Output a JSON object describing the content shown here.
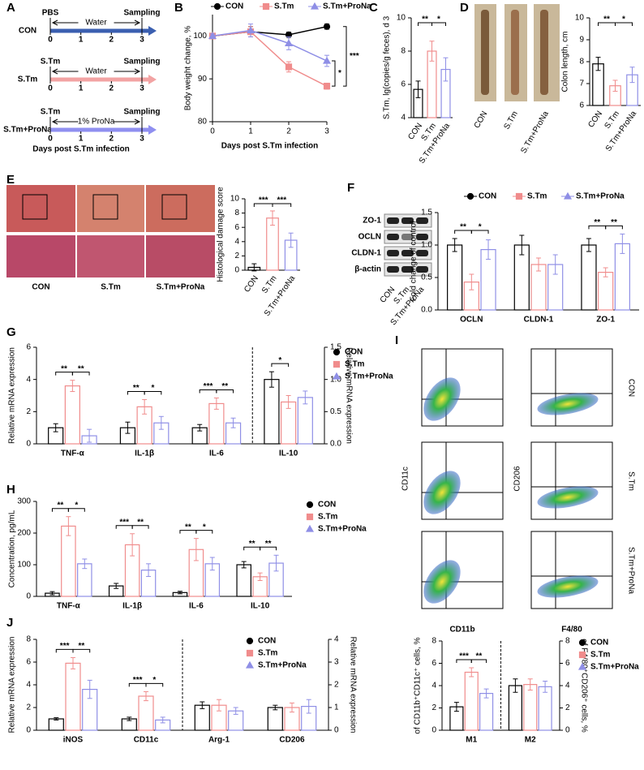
{
  "figure": {
    "timeline": {
      "panel_label": "A",
      "rows": [
        {
          "group": "CON",
          "start": "PBS",
          "end": "Sampling",
          "treatment": "Water",
          "color": "#3b5fb0"
        },
        {
          "group": "S.Tm",
          "start": "S.Tm",
          "end": "Sampling",
          "treatment": "Water",
          "color": "#f2a3a3"
        },
        {
          "group": "S.Tm+ProNa",
          "start": "S.Tm",
          "end": "Sampling",
          "treatment": "1% ProNa",
          "color": "#8f8ff0"
        }
      ],
      "ticks": [
        "0",
        "1",
        "2",
        "3"
      ],
      "xlabel": "Days post S.Tm infection"
    },
    "photos": {
      "labels": [
        "CON",
        "S.Tm",
        "S.Tm+ProNa"
      ]
    },
    "histology": {
      "panel_label": "E",
      "labels": [
        "CON",
        "S.Tm",
        "S.Tm+ProNa"
      ]
    },
    "blot": {
      "proteins": [
        "ZO-1",
        "OCLN",
        "CLDN-1",
        "β-actin"
      ],
      "lanes": [
        "CON",
        "S.Tm",
        "S.Tm+ProNa"
      ]
    },
    "flow": {
      "panel_label": "I",
      "rows": [
        "CON",
        "S.Tm",
        "S.Tm+ProNa"
      ],
      "left_x": "CD11b",
      "left_y": "CD11c",
      "right_x": "F4/80",
      "right_y": "CD206"
    }
  },
  "chart_data": [
    {
      "type": "line",
      "panel_label": "B",
      "ylabel": "Body weight change, %",
      "xlabel": "Days post S.Tm infection",
      "x": [
        0,
        1,
        2,
        3
      ],
      "xlim": [
        0,
        3
      ],
      "xticks": [
        0,
        1,
        2,
        3
      ],
      "ylim": [
        80,
        105
      ],
      "yticks": [
        80,
        90,
        100
      ],
      "series": [
        {
          "name": "CON",
          "color": "#000000",
          "values": [
            100,
            101,
            100.3,
            102.2
          ],
          "errors": [
            0.5,
            1.2,
            0.6,
            0.6
          ]
        },
        {
          "name": "S.Tm",
          "color": "#f08c8c",
          "values": [
            100,
            101,
            92.8,
            88.3
          ],
          "errors": [
            0.5,
            1.2,
            1.2,
            0.7
          ]
        },
        {
          "name": "S.Tm+ProNa",
          "color": "#8f8fe6",
          "values": [
            100,
            101.3,
            98.3,
            94.2
          ],
          "errors": [
            0.5,
            1.5,
            1.5,
            1.3
          ]
        }
      ],
      "annotations": [
        {
          "text": "*",
          "from": 1,
          "to": 2
        },
        {
          "text": "***",
          "from": 0,
          "to": 1
        }
      ]
    },
    {
      "type": "bar",
      "panel_label": "C",
      "ylabel": "S.Tm, lg(copies/g feces), d 3",
      "categories": [
        "CON",
        "S.Tm",
        "S.Tm+ProNa"
      ],
      "values": [
        5.7,
        8.0,
        6.9
      ],
      "errors": [
        0.5,
        0.6,
        0.7
      ],
      "colors": [
        "#000000",
        "#f08c8c",
        "#8f8fe6"
      ],
      "ylim": [
        4,
        10
      ],
      "yticks": [
        4,
        6,
        8,
        10
      ],
      "annotations": [
        {
          "text": "**",
          "from": 0,
          "to": 1
        },
        {
          "text": "*",
          "from": 1,
          "to": 2
        }
      ]
    },
    {
      "type": "bar",
      "panel_label": "D",
      "ylabel": "Colon length, cm",
      "categories": [
        "CON",
        "S.Tm",
        "S.Tm+ProNa"
      ],
      "values": [
        7.9,
        6.9,
        7.4
      ],
      "errors": [
        0.3,
        0.25,
        0.35
      ],
      "colors": [
        "#000000",
        "#f08c8c",
        "#8f8fe6"
      ],
      "ylim": [
        6,
        10
      ],
      "yticks": [
        6,
        7,
        8,
        9,
        10
      ],
      "annotations": [
        {
          "text": "**",
          "from": 0,
          "to": 1
        },
        {
          "text": "*",
          "from": 1,
          "to": 2
        }
      ]
    },
    {
      "type": "bar",
      "ylabel": "Histological damage score",
      "categories": [
        "CON",
        "S.Tm",
        "S.Tm+ProNa"
      ],
      "values": [
        0.4,
        7.3,
        4.2
      ],
      "errors": [
        0.5,
        1.0,
        1.0
      ],
      "colors": [
        "#000000",
        "#f08c8c",
        "#8f8fe6"
      ],
      "ylim": [
        0,
        10
      ],
      "yticks": [
        0,
        2,
        4,
        6,
        8,
        10
      ],
      "annotations": [
        {
          "text": "***",
          "from": 0,
          "to": 1
        },
        {
          "text": "***",
          "from": 1,
          "to": 2
        }
      ]
    },
    {
      "type": "grouped",
      "panel_label": "F",
      "ylabel": "Fold change of control",
      "categories": [
        "OCLN",
        "CLDN-1",
        "ZO-1"
      ],
      "ylim": [
        0,
        1.5
      ],
      "yticks": [
        {
          "value": 0,
          "label": "0.0"
        },
        0.5,
        {
          "value": 1,
          "label": "1.0"
        },
        1.5
      ],
      "series": [
        {
          "name": "CON",
          "color": "#000000",
          "values": [
            1.0,
            1.0,
            1.0
          ],
          "errors": [
            0.1,
            0.15,
            0.1
          ]
        },
        {
          "name": "S.Tm",
          "color": "#f08c8c",
          "values": [
            0.43,
            0.7,
            0.58
          ],
          "errors": [
            0.12,
            0.1,
            0.07
          ]
        },
        {
          "name": "S.Tm+ProNa",
          "color": "#8f8fe6",
          "values": [
            0.93,
            0.7,
            1.02
          ],
          "errors": [
            0.15,
            0.15,
            0.15
          ]
        }
      ],
      "annotations": [
        {
          "text": "**",
          "category": 0,
          "from": 0,
          "to": 1
        },
        {
          "text": "*",
          "category": 0,
          "from": 1,
          "to": 2
        },
        {
          "text": "**",
          "category": 2,
          "from": 0,
          "to": 1
        },
        {
          "text": "**",
          "category": 2,
          "from": 1,
          "to": 2
        }
      ]
    },
    {
      "type": "grouped",
      "panel_label": "G",
      "ylabel": "Relative mRNA expression",
      "y2label": "Relative mRNA expression",
      "categories": [
        "TNF-α",
        "IL-1β",
        "IL-6"
      ],
      "y2_categories": [
        "IL-10"
      ],
      "ylim": [
        0,
        6
      ],
      "yticks": [
        0,
        2,
        4,
        6
      ],
      "y2lim": [
        0,
        1.5
      ],
      "y2ticks": [
        {
          "value": 0,
          "label": "0.0"
        },
        0.5,
        {
          "value": 1,
          "label": "1.0"
        },
        1.5
      ],
      "series": [
        {
          "name": "CON",
          "color": "#000000",
          "values": [
            1.0,
            1.0,
            1.0
          ],
          "errors": [
            0.25,
            0.35,
            0.2
          ],
          "y2_values": [
            1.0
          ],
          "y2_errors": [
            0.12
          ]
        },
        {
          "name": "S.Tm",
          "color": "#f08c8c",
          "values": [
            3.6,
            2.3,
            2.5
          ],
          "errors": [
            0.35,
            0.45,
            0.35
          ],
          "y2_values": [
            0.65
          ],
          "y2_errors": [
            0.1
          ]
        },
        {
          "name": "S.Tm+ProNa",
          "color": "#8f8fe6",
          "values": [
            0.5,
            1.3,
            1.3
          ],
          "errors": [
            0.4,
            0.4,
            0.3
          ],
          "y2_values": [
            0.72
          ],
          "y2_errors": [
            0.1
          ]
        }
      ],
      "annotations": [
        {
          "text": "**",
          "category": 0,
          "from": 0,
          "to": 1
        },
        {
          "text": "**",
          "category": 0,
          "from": 1,
          "to": 2
        },
        {
          "text": "**",
          "category": 1,
          "from": 0,
          "to": 1
        },
        {
          "text": "*",
          "category": 1,
          "from": 1,
          "to": 2
        },
        {
          "text": "***",
          "category": 2,
          "from": 0,
          "to": 1
        },
        {
          "text": "**",
          "category": 2,
          "from": 1,
          "to": 2
        },
        {
          "text": "*",
          "category": 3,
          "from": 0,
          "to": 1
        }
      ]
    },
    {
      "type": "grouped",
      "panel_label": "H",
      "ylabel": "Concentration, pg/mL",
      "categories": [
        "TNF-α",
        "IL-1β",
        "IL-6",
        "IL-10"
      ],
      "ylim": [
        0,
        300
      ],
      "yticks": [
        0,
        100,
        200,
        300
      ],
      "series": [
        {
          "name": "CON",
          "color": "#000000",
          "values": [
            10,
            33,
            12,
            100
          ],
          "errors": [
            5,
            8,
            4,
            10
          ]
        },
        {
          "name": "S.Tm",
          "color": "#f08c8c",
          "values": [
            222,
            163,
            148,
            62
          ],
          "errors": [
            30,
            35,
            35,
            12
          ]
        },
        {
          "name": "S.Tm+ProNa",
          "color": "#8f8fe6",
          "values": [
            103,
            83,
            103,
            105
          ],
          "errors": [
            15,
            20,
            20,
            25
          ]
        }
      ],
      "annotations": [
        {
          "text": "**",
          "category": 0,
          "from": 0,
          "to": 1
        },
        {
          "text": "*",
          "category": 0,
          "from": 1,
          "to": 2
        },
        {
          "text": "***",
          "category": 1,
          "from": 0,
          "to": 1
        },
        {
          "text": "**",
          "category": 1,
          "from": 1,
          "to": 2
        },
        {
          "text": "**",
          "category": 2,
          "from": 0,
          "to": 1
        },
        {
          "text": "*",
          "category": 2,
          "from": 1,
          "to": 2
        },
        {
          "text": "**",
          "category": 3,
          "from": 0,
          "to": 1
        },
        {
          "text": "**",
          "category": 3,
          "from": 1,
          "to": 2
        }
      ]
    },
    {
      "type": "grouped",
      "panel_label": "J",
      "ylabel": "Relative mRNA expression",
      "y2label": "Relative mRNA expression",
      "categories": [
        "iNOS",
        "CD11c"
      ],
      "y2_categories": [
        "Arg-1",
        "CD206"
      ],
      "ylim": [
        0,
        8
      ],
      "yticks": [
        0,
        2,
        4,
        6,
        8
      ],
      "y2lim": [
        0,
        4
      ],
      "y2ticks": [
        0,
        1,
        2,
        3,
        4
      ],
      "series": [
        {
          "name": "CON",
          "color": "#000000",
          "values": [
            1.0,
            1.0
          ],
          "errors": [
            0.1,
            0.15
          ],
          "y2_values": [
            1.1,
            1.0
          ],
          "y2_errors": [
            0.15,
            0.1
          ]
        },
        {
          "name": "S.Tm",
          "color": "#f08c8c",
          "values": [
            5.9,
            3.0
          ],
          "errors": [
            0.5,
            0.4
          ],
          "y2_values": [
            1.1,
            1.0
          ],
          "y2_errors": [
            0.25,
            0.2
          ]
        },
        {
          "name": "S.Tm+ProNa",
          "color": "#8f8fe6",
          "values": [
            3.6,
            0.9
          ],
          "errors": [
            0.8,
            0.25
          ],
          "y2_values": [
            0.85,
            1.05
          ],
          "y2_errors": [
            0.15,
            0.3
          ]
        }
      ],
      "annotations": [
        {
          "text": "***",
          "category": 0,
          "from": 0,
          "to": 1
        },
        {
          "text": "**",
          "category": 0,
          "from": 1,
          "to": 2
        },
        {
          "text": "***",
          "category": 1,
          "from": 0,
          "to": 1
        },
        {
          "text": "*",
          "category": 1,
          "from": 1,
          "to": 2
        }
      ]
    },
    {
      "type": "grouped",
      "ylabel": "of CD11b⁺CD11c⁺ cells, %",
      "y2label": "of F4/80⁺CD206⁺ cells, %",
      "categories": [
        "M1"
      ],
      "y2_categories": [
        "M2"
      ],
      "ylim": [
        0,
        8
      ],
      "yticks": [
        0,
        2,
        4,
        6,
        8
      ],
      "y2lim": [
        0,
        8
      ],
      "y2ticks": [
        0,
        2,
        4,
        6,
        8
      ],
      "series": [
        {
          "name": "CON",
          "color": "#000000",
          "values": [
            2.1
          ],
          "errors": [
            0.4
          ],
          "y2_values": [
            4.0
          ],
          "y2_errors": [
            0.6
          ]
        },
        {
          "name": "S.Tm",
          "color": "#f08c8c",
          "values": [
            5.2
          ],
          "errors": [
            0.4
          ],
          "y2_values": [
            4.1
          ],
          "y2_errors": [
            0.5
          ]
        },
        {
          "name": "S.Tm+ProNa",
          "color": "#8f8fe6",
          "values": [
            3.3
          ],
          "errors": [
            0.4
          ],
          "y2_values": [
            3.9
          ],
          "y2_errors": [
            0.5
          ]
        }
      ],
      "annotations": [
        {
          "text": "***",
          "category": 0,
          "from": 0,
          "to": 1
        },
        {
          "text": "**",
          "category": 0,
          "from": 1,
          "to": 2
        }
      ]
    }
  ]
}
